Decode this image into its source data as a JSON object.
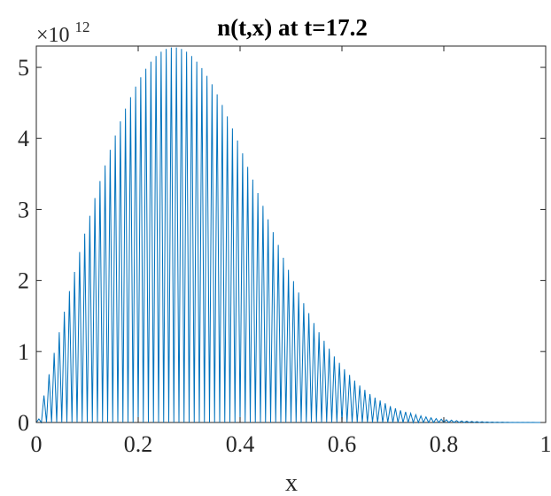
{
  "chart_data": {
    "type": "line",
    "title": "n(t,x) at t=17.2",
    "xlabel": "x",
    "ylabel": "",
    "scale_label": {
      "base": "×10",
      "exponent": "12"
    },
    "xlim": [
      0,
      1
    ],
    "ylim": [
      0,
      5.3
    ],
    "xticks": [
      0,
      0.2,
      0.4,
      0.6,
      0.8,
      1
    ],
    "xtick_labels": [
      "0",
      "0.2",
      "0.4",
      "0.6",
      "0.8",
      "1"
    ],
    "yticks": [
      0,
      1,
      2,
      3,
      4,
      5
    ],
    "ytick_labels": [
      "0",
      "1",
      "2",
      "3",
      "4",
      "5"
    ],
    "grid": false,
    "legend": "none",
    "series": [
      {
        "color": "#0072BD",
        "description_hidden": false,
        "peak_spacing": 0.01,
        "peaks": {
          "x": [
            0.005,
            0.015,
            0.025,
            0.035,
            0.045,
            0.055,
            0.065,
            0.075,
            0.085,
            0.095,
            0.105,
            0.115,
            0.125,
            0.135,
            0.145,
            0.155,
            0.165,
            0.175,
            0.185,
            0.195,
            0.205,
            0.215,
            0.225,
            0.235,
            0.245,
            0.255,
            0.265,
            0.275,
            0.285,
            0.295,
            0.305,
            0.315,
            0.325,
            0.335,
            0.345,
            0.355,
            0.365,
            0.375,
            0.385,
            0.395,
            0.405,
            0.415,
            0.425,
            0.435,
            0.445,
            0.455,
            0.465,
            0.475,
            0.485,
            0.495,
            0.505,
            0.515,
            0.525,
            0.535,
            0.545,
            0.555,
            0.565,
            0.575,
            0.585,
            0.595,
            0.605,
            0.615,
            0.625,
            0.635,
            0.645,
            0.655,
            0.665,
            0.675,
            0.685,
            0.695,
            0.705,
            0.715,
            0.725,
            0.735,
            0.745,
            0.755,
            0.765,
            0.775,
            0.785,
            0.795,
            0.805,
            0.815,
            0.825,
            0.835,
            0.845,
            0.855,
            0.865,
            0.875,
            0.885,
            0.895,
            0.905,
            0.915,
            0.925,
            0.935,
            0.945,
            0.955,
            0.965,
            0.975,
            0.985,
            0.995
          ],
          "y": [
            0.05,
            0.38,
            0.68,
            0.98,
            1.27,
            1.56,
            1.85,
            2.12,
            2.4,
            2.66,
            2.91,
            3.16,
            3.4,
            3.62,
            3.84,
            4.04,
            4.24,
            4.42,
            4.58,
            4.73,
            4.86,
            4.98,
            5.08,
            5.16,
            5.22,
            5.26,
            5.28,
            5.28,
            5.26,
            5.22,
            5.16,
            5.08,
            4.99,
            4.88,
            4.76,
            4.62,
            4.47,
            4.31,
            4.14,
            3.97,
            3.79,
            3.6,
            3.42,
            3.23,
            3.05,
            2.86,
            2.68,
            2.5,
            2.32,
            2.15,
            1.99,
            1.83,
            1.68,
            1.54,
            1.4,
            1.27,
            1.15,
            1.04,
            0.93,
            0.84,
            0.75,
            0.67,
            0.59,
            0.52,
            0.46,
            0.4,
            0.35,
            0.31,
            0.27,
            0.23,
            0.2,
            0.17,
            0.15,
            0.13,
            0.11,
            0.093,
            0.079,
            0.066,
            0.056,
            0.047,
            0.039,
            0.033,
            0.027,
            0.022,
            0.018,
            0.015,
            0.012,
            0.01,
            0.008,
            0.006,
            0.005,
            0.004,
            0.003,
            0.002,
            0.002,
            0.001,
            0.001,
            0.001,
            0.0005,
            0.0003
          ]
        }
      }
    ]
  }
}
